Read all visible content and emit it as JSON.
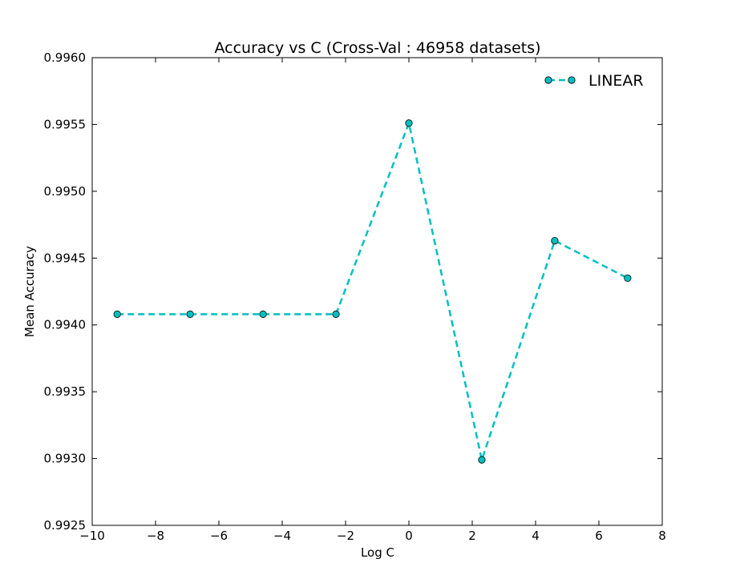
{
  "chart_data": {
    "type": "line",
    "title": "Accuracy vs C (Cross-Val : 46958 datasets)",
    "xlabel": "Log C",
    "ylabel": "Mean Accuracy",
    "xlim": [
      -10,
      8
    ],
    "ylim": [
      0.9925,
      0.996
    ],
    "xticks": [
      -10,
      -8,
      -6,
      -4,
      -2,
      0,
      2,
      4,
      6,
      8
    ],
    "xtick_labels": [
      "−10",
      "−8",
      "−6",
      "−4",
      "−2",
      "0",
      "2",
      "4",
      "6",
      "8"
    ],
    "yticks": [
      0.9925,
      0.993,
      0.9935,
      0.994,
      0.9945,
      0.995,
      0.9955,
      0.996
    ],
    "ytick_labels": [
      "0.9925",
      "0.9930",
      "0.9935",
      "0.9940",
      "0.9945",
      "0.9950",
      "0.9955",
      "0.9960"
    ],
    "grid": false,
    "legend_position": "top-right",
    "series": [
      {
        "name": "LINEAR",
        "color": "#00bfbf",
        "line_style": "dashed",
        "marker": "circle",
        "x": [
          -9.2103,
          -6.9078,
          -4.6052,
          -2.3026,
          0,
          2.3026,
          4.6052,
          6.9078
        ],
        "y": [
          0.99408,
          0.99408,
          0.99408,
          0.99408,
          0.99551,
          0.99299,
          0.99463,
          0.99435
        ]
      }
    ]
  }
}
